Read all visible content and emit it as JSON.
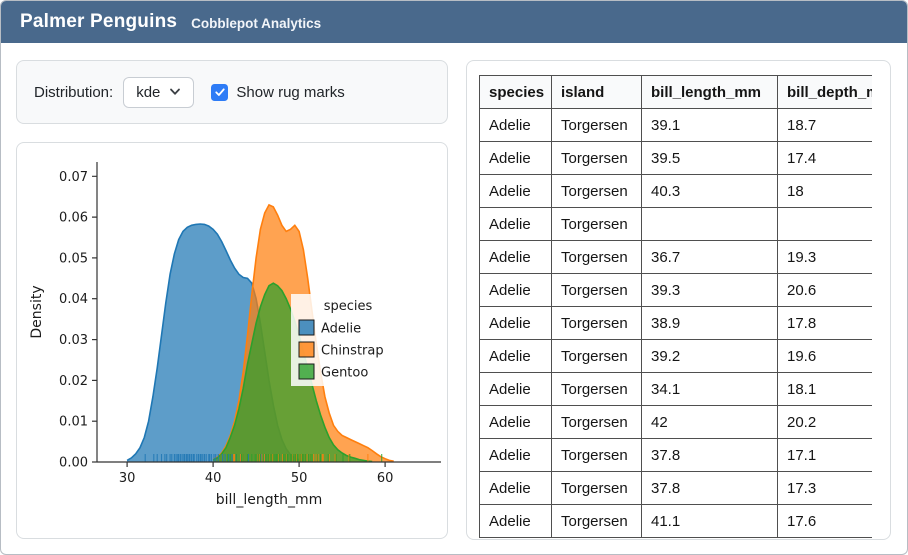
{
  "header": {
    "title": "Palmer Penguins",
    "subtitle": "Cobblepot Analytics"
  },
  "theme": {
    "header_bg": "#49698c",
    "accent": "#2e7cf6"
  },
  "controls": {
    "distribution_label": "Distribution:",
    "distribution_value": "kde",
    "rug_label": "Show rug marks",
    "rug_checked": true
  },
  "chart_data": {
    "type": "area",
    "subtype": "kde-density",
    "title": "",
    "xlabel": "bill_length_mm",
    "ylabel": "Density",
    "xlim": [
      26.5,
      66.5
    ],
    "ylim": [
      0,
      0.0735
    ],
    "xticks": [
      30,
      40,
      50,
      60
    ],
    "yticks": [
      0,
      0.01,
      0.02,
      0.03,
      0.04,
      0.05,
      0.06,
      0.07
    ],
    "grid": false,
    "legend_title": "species",
    "legend_position": "center right",
    "show_rug": true,
    "series": [
      {
        "name": "Adelie",
        "color": "#1f77b4",
        "x": [
          30,
          30.5,
          31,
          31.5,
          32,
          32.5,
          33,
          33.5,
          34,
          34.5,
          35,
          35.5,
          36,
          36.5,
          37,
          37.5,
          38,
          38.5,
          39,
          39.5,
          40,
          40.5,
          41,
          41.5,
          42,
          42.5,
          43,
          43.5,
          44,
          44.5,
          45,
          45.5,
          46,
          46.5,
          47,
          47.5,
          48,
          48.5,
          49,
          49.5,
          50
        ],
        "y": [
          0.0004,
          0.001,
          0.002,
          0.0035,
          0.006,
          0.01,
          0.016,
          0.023,
          0.031,
          0.039,
          0.046,
          0.051,
          0.0545,
          0.0565,
          0.0575,
          0.058,
          0.0582,
          0.0583,
          0.0582,
          0.0578,
          0.057,
          0.0558,
          0.054,
          0.0518,
          0.0495,
          0.0475,
          0.046,
          0.0452,
          0.045,
          0.0438,
          0.04,
          0.034,
          0.027,
          0.02,
          0.014,
          0.009,
          0.0055,
          0.0032,
          0.0018,
          0.001,
          0.0005
        ],
        "rug": [
          32.1,
          33.1,
          33.5,
          34,
          34.4,
          34.6,
          35,
          35.2,
          35.5,
          35.7,
          35.9,
          36,
          36.2,
          36.4,
          36.6,
          36.7,
          36.9,
          37,
          37.2,
          37.3,
          37.5,
          37.7,
          37.8,
          38.1,
          38.3,
          38.5,
          38.6,
          38.8,
          39,
          39.2,
          39.5,
          39.6,
          39.8,
          40.1,
          40.3,
          40.6,
          40.9,
          41.1,
          41.4,
          41.8,
          42.2,
          42.7,
          43.2,
          44.1,
          45.6,
          46
        ]
      },
      {
        "name": "Chinstrap",
        "color": "#ff7f0e",
        "x": [
          40,
          40.5,
          41,
          41.5,
          42,
          42.5,
          43,
          43.5,
          44,
          44.5,
          45,
          45.5,
          46,
          46.5,
          47,
          47.5,
          48,
          48.5,
          49,
          49.5,
          50,
          50.5,
          51,
          51.5,
          52,
          52.5,
          53,
          53.5,
          54,
          54.5,
          55,
          55.5,
          56,
          56.5,
          57,
          57.5,
          58,
          58.5,
          59,
          59.5,
          60,
          60.5,
          61
        ],
        "y": [
          0.0006,
          0.0012,
          0.0022,
          0.004,
          0.0065,
          0.01,
          0.015,
          0.022,
          0.031,
          0.041,
          0.05,
          0.057,
          0.061,
          0.063,
          0.0625,
          0.0605,
          0.058,
          0.0565,
          0.057,
          0.058,
          0.0565,
          0.052,
          0.045,
          0.037,
          0.029,
          0.022,
          0.016,
          0.012,
          0.009,
          0.0075,
          0.0065,
          0.006,
          0.0055,
          0.005,
          0.0045,
          0.004,
          0.0035,
          0.0028,
          0.002,
          0.0013,
          0.0008,
          0.0004,
          0.0002
        ],
        "rug": [
          40.9,
          42.4,
          42.5,
          43.2,
          43.5,
          45.2,
          45.4,
          45.7,
          46,
          46.2,
          46.4,
          46.6,
          46.8,
          46.9,
          47,
          47.5,
          47.6,
          48.1,
          48.5,
          49,
          49.2,
          49.5,
          49.7,
          50.1,
          50.3,
          50.5,
          50.7,
          50.9,
          51.3,
          51.7,
          52,
          52.2,
          52.7,
          52.8,
          53.5,
          54.2,
          55.8,
          58
        ]
      },
      {
        "name": "Gentoo",
        "color": "#2ca02c",
        "x": [
          40,
          40.5,
          41,
          41.5,
          42,
          42.5,
          43,
          43.5,
          44,
          44.5,
          45,
          45.5,
          46,
          46.5,
          47,
          47.5,
          48,
          48.5,
          49,
          49.5,
          50,
          50.5,
          51,
          51.5,
          52,
          52.5,
          53,
          53.5,
          54,
          54.5,
          55,
          55.5,
          56,
          56.5,
          57,
          57.5,
          58,
          58.5
        ],
        "y": [
          0.0005,
          0.001,
          0.002,
          0.0035,
          0.006,
          0.009,
          0.013,
          0.018,
          0.024,
          0.029,
          0.034,
          0.038,
          0.041,
          0.0432,
          0.0438,
          0.0432,
          0.042,
          0.04,
          0.0375,
          0.0345,
          0.031,
          0.027,
          0.023,
          0.019,
          0.015,
          0.0115,
          0.0085,
          0.006,
          0.0042,
          0.003,
          0.0022,
          0.0016,
          0.0012,
          0.0009,
          0.0006,
          0.0004,
          0.0002,
          0.0001
        ],
        "rug": [
          40.9,
          41.7,
          42,
          42.7,
          43.3,
          43.5,
          44,
          44.5,
          44.9,
          45.1,
          45.3,
          45.5,
          45.8,
          46.1,
          46.2,
          46.4,
          46.5,
          46.7,
          46.8,
          47,
          47.2,
          47.4,
          47.5,
          47.7,
          48.2,
          48.4,
          48.6,
          48.7,
          49,
          49.1,
          49.3,
          49.5,
          49.6,
          49.8,
          50,
          50.2,
          50.4,
          50.5,
          50.7,
          50.8,
          51.1,
          51.3,
          51.5,
          52.1,
          52.5,
          53.4,
          54.3,
          55.1,
          55.9,
          59.6
        ]
      }
    ]
  },
  "table": {
    "columns": [
      "species",
      "island",
      "bill_length_mm",
      "bill_depth_mm"
    ],
    "rows": [
      [
        "Adelie",
        "Torgersen",
        "39.1",
        "18.7"
      ],
      [
        "Adelie",
        "Torgersen",
        "39.5",
        "17.4"
      ],
      [
        "Adelie",
        "Torgersen",
        "40.3",
        "18"
      ],
      [
        "Adelie",
        "Torgersen",
        "",
        ""
      ],
      [
        "Adelie",
        "Torgersen",
        "36.7",
        "19.3"
      ],
      [
        "Adelie",
        "Torgersen",
        "39.3",
        "20.6"
      ],
      [
        "Adelie",
        "Torgersen",
        "38.9",
        "17.8"
      ],
      [
        "Adelie",
        "Torgersen",
        "39.2",
        "19.6"
      ],
      [
        "Adelie",
        "Torgersen",
        "34.1",
        "18.1"
      ],
      [
        "Adelie",
        "Torgersen",
        "42",
        "20.2"
      ],
      [
        "Adelie",
        "Torgersen",
        "37.8",
        "17.1"
      ],
      [
        "Adelie",
        "Torgersen",
        "37.8",
        "17.3"
      ],
      [
        "Adelie",
        "Torgersen",
        "41.1",
        "17.6"
      ]
    ]
  }
}
